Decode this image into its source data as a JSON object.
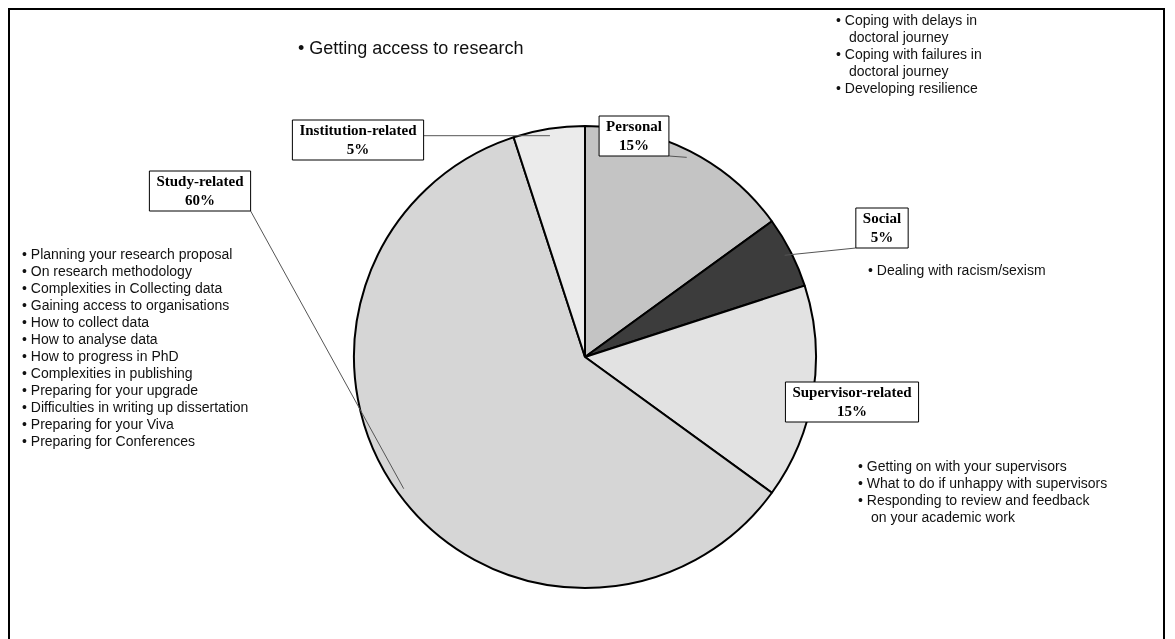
{
  "chart_data": {
    "type": "pie",
    "categories": [
      "Personal",
      "Social",
      "Supervisor-related",
      "Study-related",
      "Institution-related"
    ],
    "values": [
      15,
      5,
      15,
      60,
      5
    ],
    "colors": [
      "#c4c4c4",
      "#3c3c3c",
      "#e2e2e2",
      "#d6d6d6",
      "#ebebeb"
    ],
    "value_labels": [
      "15%",
      "5%",
      "15%",
      "60%",
      "5%"
    ],
    "legend": false,
    "annotations": [
      "• Getting access to research",
      "• Coping with delays in doctoral journey",
      "• Coping with failures in doctoral journey",
      "• Developing resilience",
      "• Dealing with racism/sexism",
      "• Getting on with your supervisors",
      "• What to do if unhappy with supervisors",
      "• Responding to review and feedback on your academic work",
      "• Planning your research proposal",
      "• On research methodology",
      "• Complexities in Collecting data",
      "• Gaining access to organisations",
      "• How to collect data",
      "• How to analyse data",
      "• How to progress in PhD",
      "• Complexities in publishing",
      "• Preparing for your upgrade",
      "• Difficulties in writing up dissertation",
      "• Preparing for your Viva",
      "• Preparing for Conferences"
    ]
  }
}
